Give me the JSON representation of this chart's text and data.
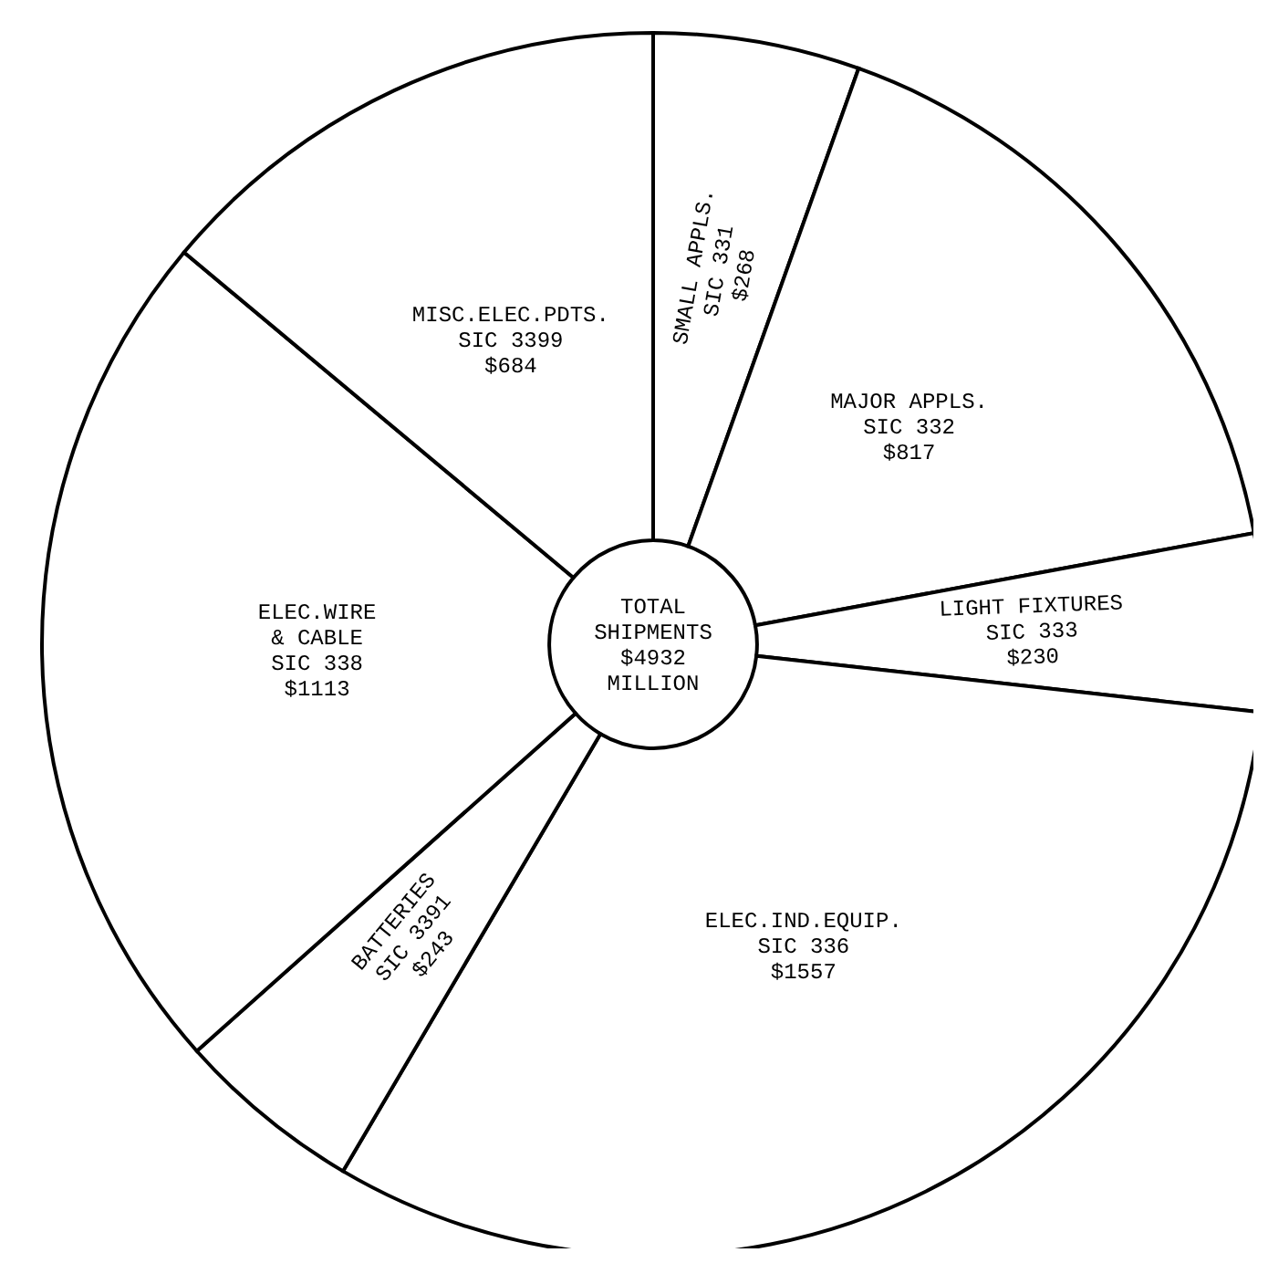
{
  "chart_data": {
    "type": "donut",
    "categories": [
      "SMALL APPLS.\nSIC 331",
      "MAJOR APPLS.\nSIC 332",
      "LIGHT FIXTURES\nSIC 333",
      "ELEC.IND.EQUIP.\nSIC 336",
      "BATTERIES\nSIC 3391",
      "ELEC.WIRE\n& CABLE\nSIC 338",
      "MISC.ELEC.PDTS.\nSIC 3399"
    ],
    "values": [
      268,
      817,
      230,
      1557,
      243,
      1113,
      684
    ],
    "value_labels": [
      "$268",
      "$817",
      "$230",
      "$1557",
      "$243",
      "$1113",
      "$684"
    ],
    "colors": [
      "#ffffff",
      "#ffffff",
      "#ffffff",
      "#ffffff",
      "#ffffff",
      "#ffffff",
      "#ffffff"
    ],
    "annotations": [
      "TOTAL SHIPMENTS $4932 MILLION"
    ]
  }
}
